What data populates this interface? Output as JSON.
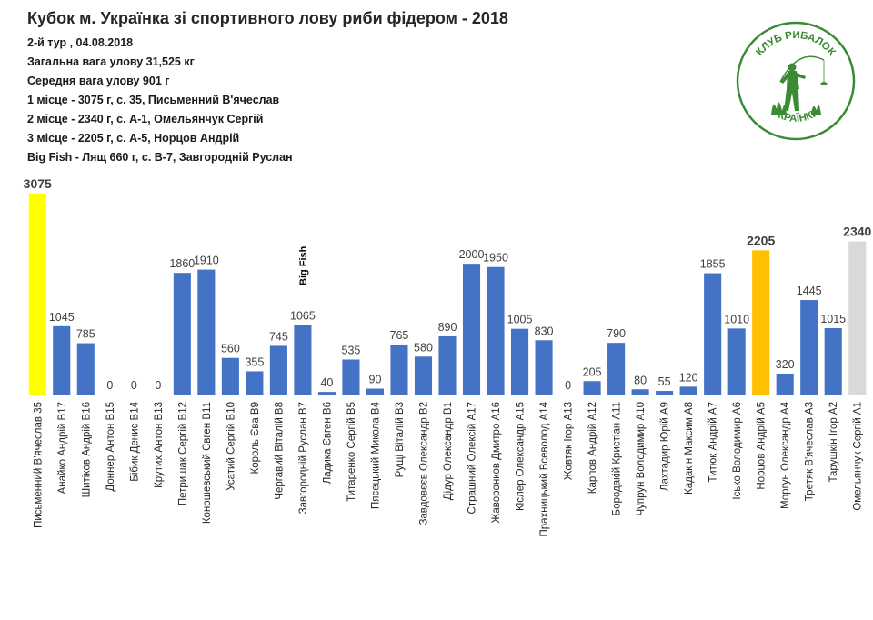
{
  "header": {
    "title": "Кубок м. Українка зі спортивного лову риби фідером - 2018",
    "lines": [
      "2-й тур , 04.08.2018",
      "Загальна вага улову 31,525 кг",
      "Середня вага улову 901 г",
      "1 місце - 3075 г, с. 35, Письменний В'ячеслав",
      "2 місце - 2340 г, с. А-1, Омельянчук Сергій",
      "3 місце - 2205 г, с. А-5, Норцов Андрій",
      "Big Fish - Лящ 660 г, с. В-7, Завгородній Руслан"
    ]
  },
  "logo": {
    "top_text": "КЛУБ РИБАЛОК",
    "bottom_text": "УКРАЇНКИ",
    "icon": "fisherman-icon",
    "color": "#3b8a34"
  },
  "chart_data": {
    "type": "bar",
    "title": "",
    "xlabel": "",
    "ylabel": "",
    "ylim": [
      0,
      3100
    ],
    "grid": false,
    "legend": "none",
    "annotation": "Big Fish",
    "annotation_category_index": 11,
    "colors": {
      "default": "#4472c4",
      "first": "#ffff00",
      "second": "#d9d9d9",
      "third": "#ffc000"
    },
    "categories": [
      "Письменний В'ячеслав 35",
      "Анайко Андрій В17",
      "Шитіков Андрій В16",
      "Доннер Антон В15",
      "Бібик Денис В14",
      "Крутих Антон В13",
      "Петришак Сергій В12",
      "Коношевський Євген В11",
      "Усатий Сергій В10",
      "Король Єва В9",
      "Чергавий Віталій В8",
      "Завгородній Руслан В7",
      "Ладика Євген В6",
      "Титаренко Сергій В5",
      "Пясецький Микола В4",
      "Рущі Віталій В3",
      "Завдовєєв Олександр В2",
      "Дідур Олександр В1",
      "Страшний Олексій А17",
      "Жаворонков Дмитро А16",
      "Кіслер Олександр А15",
      "Прахницький Всеволод А14",
      "Жовтяк Ігор А13",
      "Карпов Андрій А12",
      "Бородакій Кристіан А11",
      "Чупрун Володимир А10",
      "Лахтадир Юрій А9",
      "Кадакін Максим А8",
      "Титюк Андрій А7",
      "Ісько Володимир А6",
      "Норцов Андрій А5",
      "Моргун Олександр А4",
      "Третяк В'ячеслав А3",
      "Тарушкін Ігор А2",
      "Омельянчук Сергій А1"
    ],
    "values": [
      3075,
      1045,
      785,
      0,
      0,
      0,
      1860,
      1910,
      560,
      355,
      745,
      1065,
      40,
      535,
      90,
      765,
      580,
      890,
      2000,
      1950,
      1005,
      830,
      0,
      205,
      790,
      80,
      55,
      120,
      1855,
      1010,
      2205,
      320,
      1445,
      1015,
      2340
    ],
    "highlight": [
      "first",
      "",
      "",
      "",
      "",
      "",
      "",
      "",
      "",
      "",
      "",
      "",
      "",
      "",
      "",
      "",
      "",
      "",
      "",
      "",
      "",
      "",
      "",
      "",
      "",
      "",
      "",
      "",
      "",
      "",
      "third",
      "",
      "",
      "",
      "second"
    ]
  }
}
